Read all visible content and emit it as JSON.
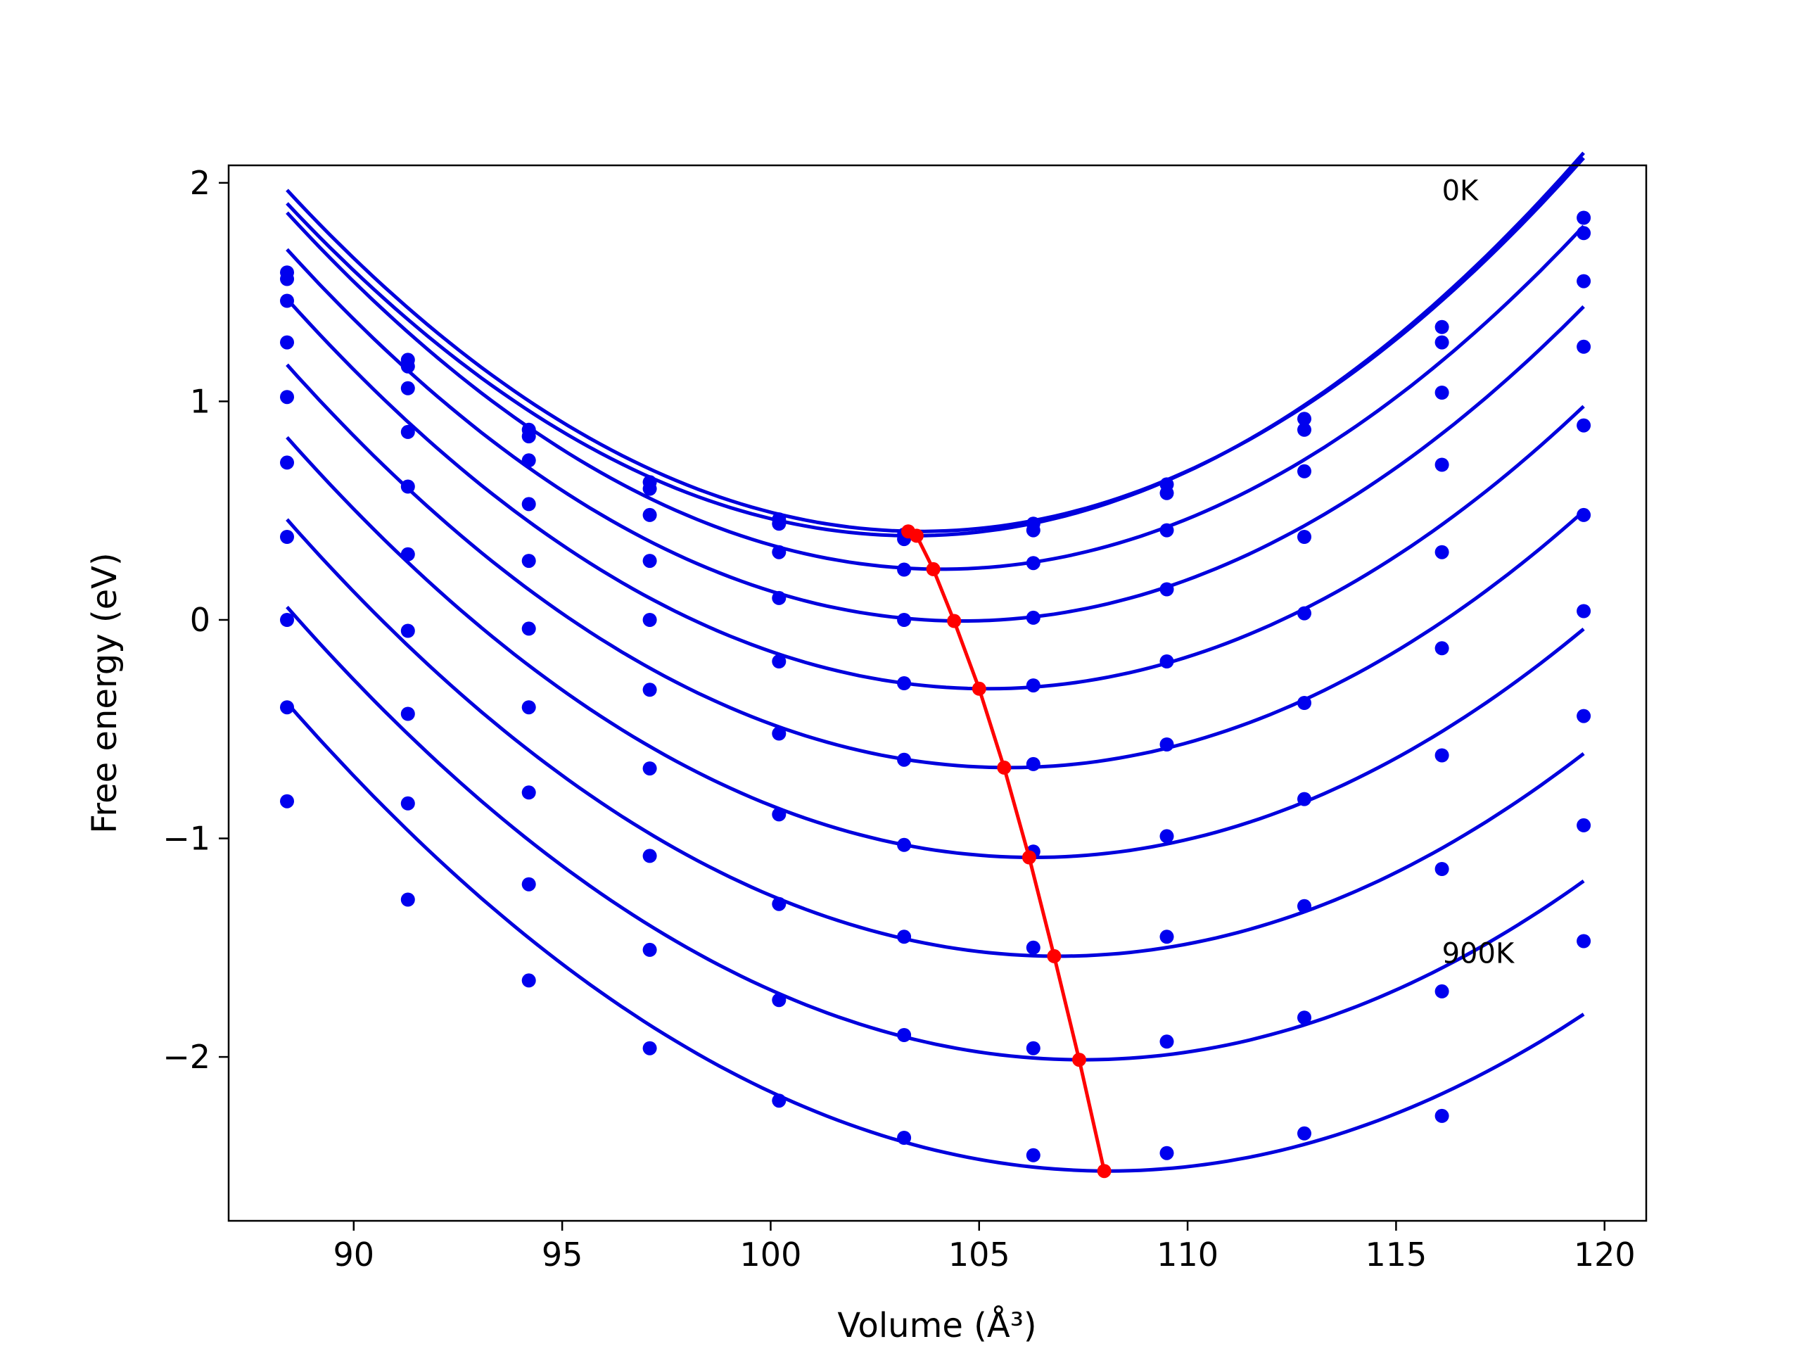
{
  "chart_data": {
    "type": "line",
    "xlabel": "Volume (Å³)",
    "ylabel": "Free energy (eV)",
    "xlim": [
      87,
      121
    ],
    "ylim": [
      -2.75,
      2.08
    ],
    "x_ticks": [
      90,
      95,
      100,
      105,
      110,
      115,
      120
    ],
    "y_ticks": [
      -2,
      -1,
      0,
      1,
      2
    ],
    "x_tick_labels": [
      "90",
      "95",
      "100",
      "105",
      "110",
      "115",
      "120"
    ],
    "y_tick_labels": [
      "−2",
      "−1",
      "0",
      "1",
      "2"
    ],
    "grid": false,
    "legend": "none",
    "fit_color": "#0000dd",
    "point_color": "#0000ee",
    "equilibrium_color": "#ff0000",
    "annotations": [
      {
        "text": "0K",
        "x": 116.1,
        "y": 1.92
      },
      {
        "text": "900K",
        "x": 116.1,
        "y": -1.57
      }
    ],
    "volumes": [
      88.4,
      91.3,
      94.2,
      97.1,
      100.2,
      103.2,
      106.3,
      109.5,
      112.8,
      116.1,
      119.5
    ],
    "series": [
      {
        "curve": {
          "a": 0.00676,
          "v0": 103.6,
          "e0": 0.405
        },
        "points": [
          1.59,
          1.19,
          0.87,
          0.63,
          0.46,
          0.39,
          0.44,
          0.62,
          0.92,
          1.34,
          1.84
        ]
      },
      {
        "curve": {
          "a": 0.00676,
          "v0": 103.4,
          "e0": 0.385
        },
        "points": [
          1.56,
          1.16,
          0.84,
          0.6,
          0.44,
          0.37,
          0.41,
          0.58,
          0.87,
          1.27,
          1.77
        ]
      },
      {
        "curve": {
          "a": 0.00662,
          "v0": 104.1,
          "e0": 0.232
        },
        "points": [
          1.46,
          1.06,
          0.73,
          0.48,
          0.31,
          0.23,
          0.26,
          0.41,
          0.68,
          1.04,
          1.55
        ]
      },
      {
        "curve": {
          "a": 0.00648,
          "v0": 104.6,
          "e0": -0.005
        },
        "points": [
          1.27,
          0.86,
          0.53,
          0.27,
          0.1,
          0.0,
          0.01,
          0.14,
          0.38,
          0.71,
          1.25
        ]
      },
      {
        "curve": {
          "a": 0.00632,
          "v0": 105.2,
          "e0": -0.315
        },
        "points": [
          1.02,
          0.61,
          0.27,
          0.0,
          -0.19,
          -0.29,
          -0.3,
          -0.19,
          0.03,
          0.31,
          0.89
        ]
      },
      {
        "curve": {
          "a": 0.00616,
          "v0": 105.7,
          "e0": -0.676
        },
        "points": [
          0.72,
          0.3,
          -0.04,
          -0.32,
          -0.52,
          -0.64,
          -0.66,
          -0.57,
          -0.38,
          -0.13,
          0.48
        ]
      },
      {
        "curve": {
          "a": 0.006,
          "v0": 106.3,
          "e0": -1.087
        },
        "points": [
          0.38,
          -0.05,
          -0.4,
          -0.68,
          -0.89,
          -1.03,
          -1.06,
          -0.99,
          -0.82,
          -0.62,
          0.04
        ]
      },
      {
        "curve": {
          "a": 0.00584,
          "v0": 106.9,
          "e0": -1.539
        },
        "points": [
          0.0,
          -0.43,
          -0.79,
          -1.08,
          -1.3,
          -1.45,
          -1.5,
          -1.45,
          -1.31,
          -1.14,
          -0.44
        ]
      },
      {
        "curve": {
          "a": 0.00568,
          "v0": 107.5,
          "e0": -2.013
        },
        "points": [
          -0.4,
          -0.84,
          -1.21,
          -1.51,
          -1.74,
          -1.9,
          -1.96,
          -1.93,
          -1.82,
          -1.7,
          -0.94
        ]
      },
      {
        "curve": {
          "a": 0.00552,
          "v0": 108.1,
          "e0": -2.522
        },
        "points": [
          -0.83,
          -1.28,
          -1.65,
          -1.96,
          -2.2,
          -2.37,
          -2.45,
          -2.44,
          -2.35,
          -2.27,
          -1.47
        ]
      }
    ],
    "equilibrium": {
      "x": [
        103.3,
        103.5,
        103.9,
        104.4,
        105.0,
        105.6,
        106.2,
        106.8,
        107.4,
        108.0
      ],
      "y": [
        0.405,
        0.385,
        0.232,
        -0.005,
        -0.315,
        -0.676,
        -1.087,
        -1.539,
        -2.013,
        -2.522
      ]
    }
  }
}
